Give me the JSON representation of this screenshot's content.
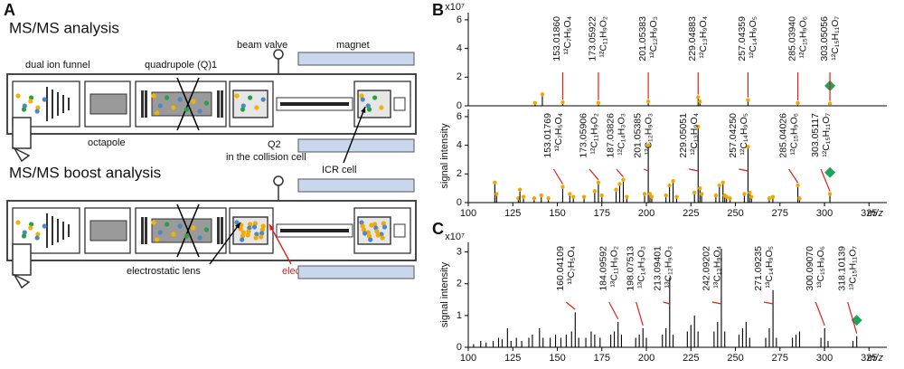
{
  "panel_labels": [
    "A",
    "B",
    "C"
  ],
  "diagram": {
    "top_title": "MS/MS analysis",
    "bottom_title": "MS/MS boost analysis",
    "labels": {
      "funnel": "dual ion funnel",
      "quadrupole": "quadrupole (Q)1",
      "valve": "beam valve",
      "magnet": "magnet",
      "octapole": "octapole",
      "q2": "Q2",
      "collision": "in the collision cell",
      "icr": "ICR cell",
      "lens": "electrostatic lens",
      "wall": "electrostatic wall"
    }
  },
  "chart_data": [
    {
      "type": "stem",
      "multiplier": "x10⁷",
      "color": "#000000",
      "marker_color": "#f0a800",
      "markers": true,
      "xlim": [
        100,
        335
      ],
      "ylim": [
        0,
        6.5
      ],
      "yticks": [
        0,
        2,
        4,
        6
      ],
      "x": [
        137.5,
        141.6,
        153.02,
        173.06,
        201.05,
        229.05,
        230.05,
        257.04,
        285.04,
        303.05
      ],
      "values": [
        0.2,
        0.8,
        0.25,
        0.2,
        0.3,
        0.6,
        0.3,
        0.4,
        0.2,
        0.15
      ],
      "precursor": {
        "x": 303.05,
        "y": 1.4,
        "color": "#1aa55a"
      },
      "annotation_color": "#e0201b",
      "annotations": [
        {
          "mass": "153.01860",
          "formula": "¹²C₇H₅O₄",
          "x": 153.0186
        },
        {
          "mass": "173.05922",
          "formula": "¹²C₁₁H₉O₂",
          "x": 173.05922
        },
        {
          "mass": "201.05383",
          "formula": "¹²C₁₂H₉O₃",
          "x": 201.05383
        },
        {
          "mass": "229.04883",
          "formula": "¹²C₁₃H₉O₄",
          "x": 229.04883
        },
        {
          "mass": "257.04359",
          "formula": "¹²C₁₄H₉O₅",
          "x": 257.04359
        },
        {
          "mass": "285.03940",
          "formula": "¹²C₁₅H₉O₆",
          "x": 285.0394
        },
        {
          "mass": "303.05056",
          "formula": "¹²C₁₅H₁₁O₇",
          "x": 303.05056
        }
      ]
    },
    {
      "type": "stem",
      "y_label": "signal intensity",
      "x_label": "m/z",
      "color": "#000000",
      "marker_color": "#f0a800",
      "markers": true,
      "xlim": [
        100,
        335
      ],
      "ylim": [
        0,
        6.5
      ],
      "yticks": [
        0,
        2,
        4,
        6
      ],
      "xticks": [
        100,
        125,
        150,
        175,
        200,
        225,
        250,
        275,
        300,
        325
      ],
      "x": [
        114.9,
        115.9,
        128.1,
        129.0,
        131,
        137,
        141,
        145,
        153.02,
        157,
        159,
        165,
        171,
        173.06,
        175,
        183,
        185,
        187.04,
        189,
        199,
        201.05,
        202,
        203,
        211,
        213,
        215,
        217,
        227,
        229.05,
        230.05,
        231,
        239,
        241,
        243,
        244,
        245,
        247,
        255,
        257.04,
        258,
        259,
        269,
        271,
        285.04,
        286,
        303.05
      ],
      "values": [
        1.4,
        0.6,
        0.3,
        0.9,
        0.4,
        0.3,
        0.5,
        0.3,
        1.1,
        0.6,
        0.4,
        0.4,
        0.8,
        1.4,
        0.5,
        0.9,
        1.3,
        1.6,
        0.4,
        0.6,
        4.0,
        0.6,
        0.4,
        0.5,
        1.2,
        1.5,
        0.4,
        0.7,
        5.3,
        1.0,
        0.6,
        0.5,
        1.2,
        1.4,
        0.5,
        0.4,
        0.3,
        0.6,
        3.9,
        0.7,
        0.4,
        0.3,
        0.4,
        1.2,
        0.3,
        0.6
      ],
      "precursor": {
        "x": 303.05,
        "y": 2.1,
        "color": "#1aa55a"
      },
      "annotation_color": "#e0201b",
      "annotations": [
        {
          "mass": "153.01769",
          "formula": "¹²C₇H₅O₄",
          "x": 153.01769
        },
        {
          "mass": "173.05906",
          "formula": "¹²C₁₁H₉O₂",
          "x": 173.05906
        },
        {
          "mass": "187.03826",
          "formula": "¹²C₁₄H₃O₃",
          "x": 187.03826
        },
        {
          "mass": "201.05385",
          "formula": "¹²C₁₂H₉O₃",
          "x": 201.05385
        },
        {
          "mass": "229.05051",
          "formula": "¹²C₁₃H₉O₄",
          "x": 229.05051
        },
        {
          "mass": "257.04250",
          "formula": "¹²C₁₄H₉O₅",
          "x": 257.0425
        },
        {
          "mass": "285.04026",
          "formula": "¹²C₁₅H₉O₆",
          "x": 285.04026
        },
        {
          "mass": "303.05117",
          "formula": "¹²C₁₅H₁₁O₇",
          "x": 303.05117
        }
      ]
    },
    {
      "type": "stem",
      "multiplier": "x10⁷",
      "y_label": "signal intensity",
      "x_label": "m/z",
      "color": "#000000",
      "markers": false,
      "xlim": [
        100,
        335
      ],
      "ylim": [
        0,
        3.3
      ],
      "yticks": [
        0,
        1,
        2,
        3
      ],
      "xticks": [
        100,
        125,
        150,
        175,
        200,
        225,
        250,
        275,
        300,
        325
      ],
      "x": [
        103,
        107,
        110,
        114,
        117,
        119,
        122,
        124,
        127,
        130,
        134,
        136,
        140,
        142,
        146,
        149,
        152,
        155,
        158,
        160.04,
        162,
        166,
        169,
        171,
        174,
        180,
        182,
        184.1,
        186,
        194,
        196,
        198.08,
        200,
        209,
        211,
        213.09,
        215,
        223,
        225,
        227,
        229,
        238,
        240,
        242.09,
        244,
        252,
        254,
        256,
        258,
        267,
        269,
        271.09,
        273,
        282,
        284,
        286,
        298,
        300.09,
        302,
        316,
        318.1
      ],
      "values": [
        0.1,
        0.2,
        0.15,
        0.2,
        0.3,
        0.25,
        0.6,
        0.2,
        0.3,
        0.2,
        0.3,
        0.4,
        0.6,
        0.3,
        0.3,
        0.4,
        0.3,
        0.4,
        0.5,
        1.1,
        0.3,
        0.3,
        0.5,
        0.4,
        0.3,
        0.4,
        0.5,
        0.8,
        0.4,
        0.3,
        0.4,
        0.6,
        0.3,
        0.4,
        0.6,
        2.2,
        0.4,
        0.5,
        0.7,
        1.0,
        0.5,
        0.5,
        0.8,
        3.1,
        0.5,
        0.4,
        0.6,
        0.8,
        0.3,
        0.3,
        0.6,
        1.8,
        0.3,
        0.3,
        0.4,
        0.5,
        0.3,
        0.6,
        0.2,
        0.2,
        0.35
      ],
      "precursor": {
        "x": 318.1,
        "y": 0.85,
        "color": "#1aa55a"
      },
      "annotation_color": "#e0201b",
      "annotations": [
        {
          "mass": "160.04109",
          "formula": "¹³C₇H₅O₄",
          "x": 160.04109
        },
        {
          "mass": "184.09592",
          "formula": "¹³C₁₁H₉O₂",
          "x": 184.09592
        },
        {
          "mass": "198.07513",
          "formula": "¹³C₁₄H₃O₃",
          "x": 198.07513
        },
        {
          "mass": "213.09401",
          "formula": "¹³C₁₂H₉O₃",
          "x": 213.09401
        },
        {
          "mass": "242.09202",
          "formula": "¹³C₁₃H₉O₄",
          "x": 242.09202
        },
        {
          "mass": "271.09235",
          "formula": "¹³C₁₄H₉O₅",
          "x": 271.09235
        },
        {
          "mass": "300.09070",
          "formula": "¹³C₁₅H₉O₆",
          "x": 300.0907
        },
        {
          "mass": "318.10139",
          "formula": "¹³C₁₅H₁₁O₇",
          "x": 318.10139
        }
      ]
    }
  ]
}
